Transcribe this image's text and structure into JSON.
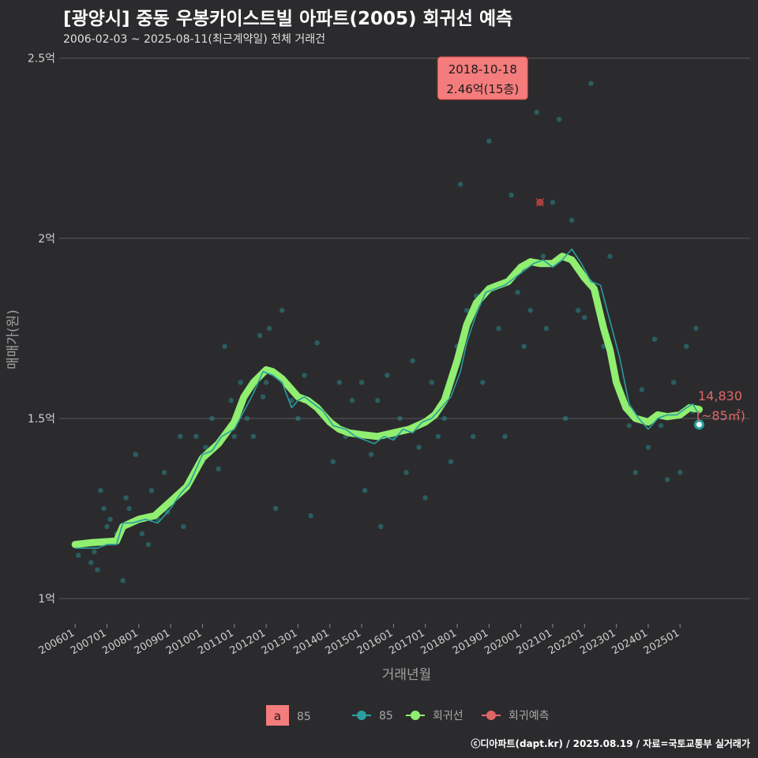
{
  "title": "[광양시] 중동 우봉카이스트빌 아파트(2005) 회귀선 예측",
  "subtitle": "2006-02-03 ~ 2025-08-11(최근계약일) 전체 거래건",
  "footer": "ⓒ디아파트(dapt.kr) / 2025.08.19 / 자료=국토교통부 실거래가",
  "colors": {
    "background": "#2b2b2d",
    "regression": "#90ee70",
    "series85": "#2a9d9f",
    "prediction": "#e06666",
    "annotation_bg": "#f47c7c"
  },
  "chart_data": {
    "type": "line",
    "xlabel": "거래년월",
    "ylabel": "매매가(원)",
    "ylim": [
      0.93,
      2.53
    ],
    "y_ticks": [
      {
        "value": 1.0,
        "label": "1억"
      },
      {
        "value": 1.5,
        "label": "1.5억"
      },
      {
        "value": 2.0,
        "label": "2억"
      },
      {
        "value": 2.5,
        "label": "2.5억"
      }
    ],
    "x_ticks": [
      "200601",
      "200701",
      "200801",
      "200901",
      "201001",
      "201101",
      "201201",
      "201301",
      "201401",
      "201501",
      "201601",
      "201701",
      "201801",
      "201901",
      "202001",
      "202101",
      "202201",
      "202301",
      "202401",
      "202501"
    ],
    "x_range": [
      2005.5,
      2027.2
    ],
    "annotation": {
      "date_label": "2018-10-18",
      "value_label": "2.46억(15층)",
      "x": 2018.8,
      "y": 2.46
    },
    "prediction_label": {
      "value": "14,830",
      "area": "(~85㎡)"
    },
    "last_point": {
      "x": 2025.6,
      "y": 1.483
    },
    "prediction_point": {
      "x": 2020.6,
      "y": 2.1
    },
    "legend": {
      "box_letter": "a",
      "box_label": "85",
      "items": [
        {
          "label": "85",
          "color": "#2a9d9f"
        },
        {
          "label": "회귀선",
          "color": "#90ee70"
        },
        {
          "label": "회귀예측",
          "color": "#e06666"
        }
      ]
    },
    "series": [
      {
        "name": "회귀선",
        "x": [
          2006.0,
          2006.5,
          2007.0,
          2007.3,
          2007.5,
          2008.0,
          2008.5,
          2009.0,
          2009.5,
          2010.0,
          2010.5,
          2011.0,
          2011.3,
          2011.6,
          2012.0,
          2012.2,
          2012.5,
          2012.8,
          2013.0,
          2013.3,
          2013.6,
          2014.0,
          2014.3,
          2014.6,
          2015.0,
          2015.5,
          2016.0,
          2016.5,
          2017.0,
          2017.3,
          2017.6,
          2018.0,
          2018.3,
          2018.6,
          2019.0,
          2019.3,
          2019.6,
          2020.0,
          2020.3,
          2020.6,
          2021.0,
          2021.3,
          2021.6,
          2022.0,
          2022.3,
          2022.6,
          2022.8,
          2023.0,
          2023.3,
          2023.6,
          2024.0,
          2024.3,
          2024.6,
          2025.0,
          2025.3,
          2025.6
        ],
        "y": [
          1.15,
          1.155,
          1.158,
          1.16,
          1.2,
          1.22,
          1.23,
          1.27,
          1.31,
          1.39,
          1.43,
          1.49,
          1.56,
          1.6,
          1.635,
          1.63,
          1.61,
          1.58,
          1.56,
          1.55,
          1.53,
          1.49,
          1.47,
          1.46,
          1.455,
          1.45,
          1.46,
          1.47,
          1.49,
          1.51,
          1.55,
          1.66,
          1.76,
          1.82,
          1.86,
          1.87,
          1.88,
          1.92,
          1.935,
          1.93,
          1.93,
          1.95,
          1.94,
          1.89,
          1.86,
          1.75,
          1.69,
          1.6,
          1.53,
          1.5,
          1.49,
          1.51,
          1.505,
          1.51,
          1.53,
          1.525
        ]
      },
      {
        "name": "85",
        "x": [
          2006.0,
          2006.4,
          2006.7,
          2007.0,
          2007.3,
          2007.5,
          2007.8,
          2008.2,
          2008.6,
          2009.0,
          2009.3,
          2009.6,
          2010.0,
          2010.3,
          2010.6,
          2011.0,
          2011.3,
          2011.6,
          2011.9,
          2012.2,
          2012.5,
          2012.8,
          2013.0,
          2013.2,
          2013.5,
          2013.8,
          2014.1,
          2014.5,
          2014.8,
          2015.1,
          2015.4,
          2015.7,
          2016.0,
          2016.3,
          2016.6,
          2016.9,
          2017.2,
          2017.5,
          2017.8,
          2018.1,
          2018.3,
          2018.6,
          2018.9,
          2019.2,
          2019.5,
          2019.8,
          2020.1,
          2020.4,
          2020.7,
          2021.0,
          2021.3,
          2021.6,
          2021.9,
          2022.2,
          2022.5,
          2022.8,
          2023.1,
          2023.4,
          2023.7,
          2024.0,
          2024.3,
          2024.6,
          2024.9,
          2025.2,
          2025.4,
          2025.6
        ],
        "y": [
          1.14,
          1.14,
          1.14,
          1.15,
          1.15,
          1.21,
          1.21,
          1.22,
          1.21,
          1.25,
          1.29,
          1.32,
          1.4,
          1.41,
          1.45,
          1.47,
          1.52,
          1.57,
          1.63,
          1.62,
          1.6,
          1.53,
          1.55,
          1.56,
          1.54,
          1.52,
          1.48,
          1.47,
          1.45,
          1.44,
          1.43,
          1.45,
          1.44,
          1.47,
          1.46,
          1.49,
          1.5,
          1.53,
          1.56,
          1.63,
          1.71,
          1.79,
          1.85,
          1.86,
          1.87,
          1.89,
          1.91,
          1.93,
          1.94,
          1.92,
          1.94,
          1.97,
          1.93,
          1.88,
          1.87,
          1.77,
          1.67,
          1.54,
          1.5,
          1.47,
          1.5,
          1.51,
          1.51,
          1.53,
          1.54,
          1.51
        ]
      }
    ],
    "scatter": {
      "name": "85",
      "x": [
        2006.1,
        2006.2,
        2006.5,
        2006.6,
        2006.7,
        2006.8,
        2006.9,
        2007.0,
        2007.1,
        2007.3,
        2007.5,
        2007.6,
        2007.7,
        2007.9,
        2008.1,
        2008.3,
        2008.4,
        2008.6,
        2008.8,
        2008.9,
        2009.1,
        2009.3,
        2009.4,
        2009.6,
        2009.8,
        2010.0,
        2010.1,
        2010.3,
        2010.5,
        2010.7,
        2010.9,
        2011.0,
        2011.2,
        2011.4,
        2011.6,
        2011.8,
        2011.9,
        2012.0,
        2012.1,
        2012.3,
        2012.5,
        2012.6,
        2012.8,
        2013.0,
        2013.2,
        2013.4,
        2013.6,
        2013.9,
        2014.1,
        2014.3,
        2014.5,
        2014.7,
        2015.0,
        2015.1,
        2015.3,
        2015.5,
        2015.6,
        2015.8,
        2016.0,
        2016.2,
        2016.4,
        2016.6,
        2016.8,
        2017.0,
        2017.2,
        2017.4,
        2017.6,
        2017.8,
        2018.0,
        2018.1,
        2018.3,
        2018.5,
        2018.6,
        2018.8,
        2019.0,
        2019.1,
        2019.3,
        2019.5,
        2019.7,
        2019.9,
        2020.1,
        2020.3,
        2020.5,
        2020.7,
        2020.8,
        2021.0,
        2021.2,
        2021.4,
        2021.6,
        2021.8,
        2022.0,
        2022.2,
        2022.4,
        2022.6,
        2022.8,
        2023.0,
        2023.2,
        2023.4,
        2023.6,
        2023.8,
        2024.0,
        2024.2,
        2024.4,
        2024.6,
        2024.8,
        2025.0,
        2025.2,
        2025.4,
        2025.5
      ],
      "y": [
        1.12,
        1.15,
        1.1,
        1.13,
        1.08,
        1.3,
        1.25,
        1.2,
        1.22,
        1.18,
        1.05,
        1.28,
        1.25,
        1.4,
        1.18,
        1.15,
        1.3,
        1.22,
        1.35,
        1.24,
        1.28,
        1.45,
        1.2,
        1.32,
        1.45,
        1.38,
        1.42,
        1.5,
        1.36,
        1.7,
        1.55,
        1.45,
        1.6,
        1.5,
        1.45,
        1.73,
        1.56,
        1.6,
        1.75,
        1.25,
        1.8,
        1.6,
        1.55,
        1.5,
        1.62,
        1.23,
        1.71,
        1.5,
        1.38,
        1.6,
        1.45,
        1.55,
        1.6,
        1.3,
        1.4,
        1.55,
        1.2,
        1.62,
        1.45,
        1.5,
        1.35,
        1.66,
        1.42,
        1.28,
        1.6,
        1.45,
        1.5,
        1.38,
        1.7,
        2.15,
        1.8,
        1.45,
        1.84,
        1.6,
        2.27,
        2.46,
        1.75,
        1.45,
        2.12,
        1.85,
        1.7,
        1.8,
        2.35,
        1.95,
        1.75,
        2.1,
        2.33,
        1.5,
        2.05,
        1.8,
        1.78,
        2.43,
        1.85,
        1.7,
        1.95,
        1.6,
        1.55,
        1.48,
        1.35,
        1.58,
        1.42,
        1.72,
        1.48,
        1.33,
        1.6,
        1.35,
        1.7,
        1.52,
        1.75
      ]
    }
  }
}
